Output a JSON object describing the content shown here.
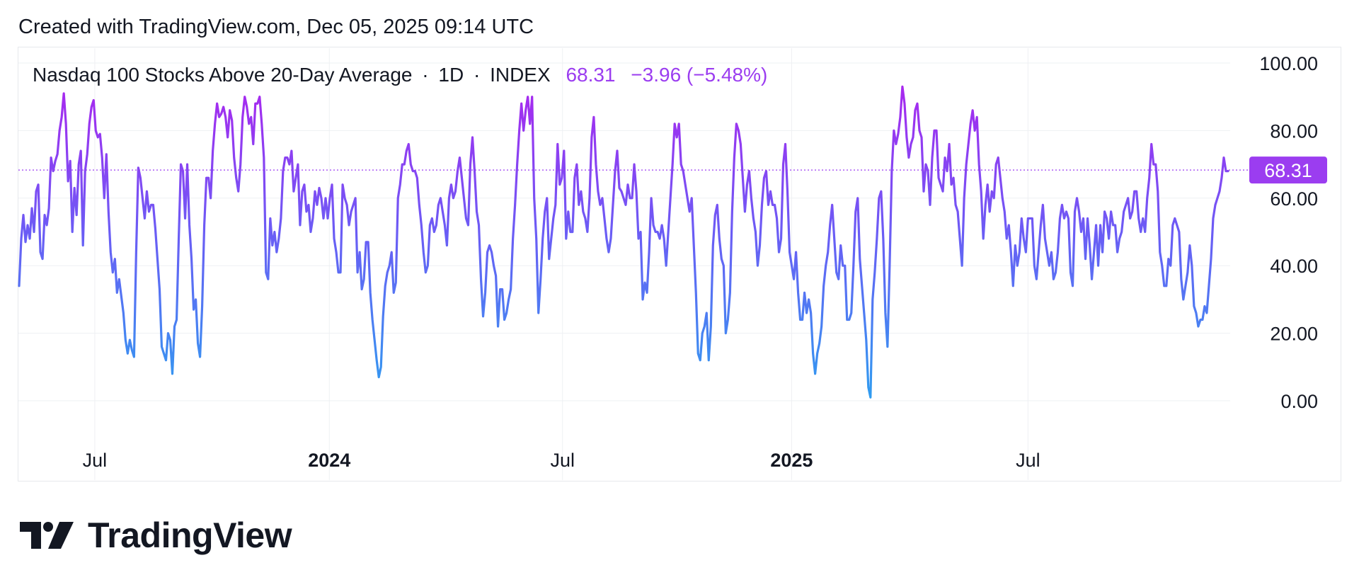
{
  "caption": "Created with TradingView.com, Dec 05, 2025 09:14 UTC",
  "legend": {
    "symbol": "Nasdaq 100 Stocks Above 20-Day Average",
    "interval": "1D",
    "exchange": "INDEX",
    "separator": "·",
    "last_value": "68.31",
    "change": "−3.96 (−5.48%)"
  },
  "brand": {
    "name": "TradingView"
  },
  "colors": {
    "line_low": "#2f9df0",
    "line_mid": "#6b5cf5",
    "line_high": "#b220ee",
    "price_label_bg": "#9b3df0",
    "grid": "#eef0f3"
  },
  "chart_data": {
    "type": "line",
    "title": "Nasdaq 100 Stocks Above 20-Day Average · 1D · INDEX",
    "ylim": [
      -10,
      102
    ],
    "y_ticks": [
      "100.00",
      "80.00",
      "60.00",
      "40.00",
      "20.00",
      "0.00"
    ],
    "y_tick_values": [
      100,
      80,
      60,
      40,
      20,
      0
    ],
    "x_ticks": [
      {
        "label": "Jul",
        "t": 0.0626,
        "bold": false
      },
      {
        "label": "2024",
        "t": 0.2566,
        "bold": true
      },
      {
        "label": "Jul",
        "t": 0.4495,
        "bold": false
      },
      {
        "label": "2025",
        "t": 0.639,
        "bold": true
      },
      {
        "label": "Jul",
        "t": 0.8345,
        "bold": false
      }
    ],
    "last_value": 68.31,
    "last_value_label": "68.31",
    "series": [
      {
        "name": "Nasdaq 100 Stocks Above 20-Day Average",
        "values": [
          34,
          48,
          55,
          47,
          52,
          48,
          57,
          50,
          62,
          64,
          44,
          42,
          55,
          52,
          57,
          72,
          68,
          71,
          73,
          80,
          84,
          91,
          82,
          65,
          71,
          50,
          63,
          55,
          70,
          74,
          46,
          68,
          73,
          82,
          87,
          89,
          80,
          78,
          79,
          72,
          60,
          73,
          56,
          44,
          38,
          42,
          32,
          36,
          31,
          26,
          18,
          14,
          18,
          15,
          13,
          44,
          69,
          66,
          60,
          54,
          62,
          56,
          58,
          58,
          51,
          42,
          33,
          16,
          14,
          12,
          20,
          18,
          8,
          22,
          24,
          48,
          70,
          68,
          54,
          70,
          52,
          42,
          27,
          30,
          17,
          13,
          28,
          52,
          66,
          66,
          60,
          74,
          82,
          88,
          84,
          85,
          87,
          84,
          78,
          86,
          83,
          72,
          66,
          62,
          70,
          84,
          90,
          87,
          82,
          84,
          76,
          88,
          88,
          90,
          82,
          72,
          38,
          36,
          54,
          46,
          50,
          44,
          48,
          54,
          68,
          72,
          72,
          70,
          74,
          62,
          66,
          70,
          52,
          62,
          64,
          56,
          58,
          50,
          54,
          62,
          58,
          63,
          60,
          54,
          60,
          54,
          60,
          64,
          48,
          44,
          38,
          38,
          64,
          60,
          58,
          52,
          56,
          58,
          60,
          38,
          44,
          33,
          36,
          47,
          47,
          32,
          24,
          18,
          12,
          7,
          10,
          25,
          34,
          38,
          40,
          44,
          32,
          35,
          60,
          64,
          70,
          70,
          74,
          76,
          70,
          68,
          68,
          66,
          58,
          52,
          44,
          38,
          40,
          52,
          54,
          50,
          52,
          58,
          60,
          56,
          52,
          46,
          60,
          64,
          60,
          62,
          68,
          72,
          66,
          60,
          54,
          52,
          70,
          78,
          68,
          56,
          52,
          36,
          25,
          32,
          44,
          46,
          44,
          40,
          37,
          22,
          33,
          33,
          24,
          26,
          30,
          33,
          48,
          58,
          70,
          80,
          88,
          80,
          86,
          90,
          82,
          90,
          60,
          48,
          26,
          36,
          48,
          56,
          60,
          42,
          48,
          54,
          58,
          76,
          64,
          66,
          74,
          48,
          56,
          50,
          50,
          66,
          70,
          58,
          62,
          56,
          54,
          50,
          60,
          78,
          84,
          70,
          62,
          58,
          60,
          54,
          48,
          44,
          48,
          58,
          68,
          74,
          63,
          62,
          60,
          58,
          64,
          60,
          60,
          70,
          62,
          48,
          50,
          30,
          35,
          32,
          44,
          60,
          52,
          50,
          50,
          48,
          52,
          48,
          40,
          50,
          60,
          70,
          82,
          78,
          82,
          70,
          68,
          64,
          60,
          56,
          60,
          46,
          32,
          14,
          12,
          20,
          22,
          26,
          12,
          22,
          46,
          55,
          58,
          48,
          42,
          40,
          20,
          24,
          32,
          56,
          72,
          82,
          80,
          76,
          66,
          56,
          64,
          68,
          60,
          54,
          50,
          40,
          46,
          58,
          66,
          68,
          58,
          62,
          58,
          58,
          54,
          44,
          48,
          70,
          76,
          62,
          44,
          40,
          36,
          44,
          32,
          24,
          24,
          32,
          26,
          30,
          26,
          14,
          8,
          14,
          17,
          22,
          34,
          40,
          44,
          52,
          58,
          48,
          38,
          36,
          46,
          40,
          40,
          24,
          24,
          26,
          40,
          56,
          60,
          42,
          34,
          26,
          18,
          4,
          1,
          30,
          38,
          48,
          60,
          62,
          48,
          26,
          16,
          40,
          68,
          80,
          76,
          79,
          84,
          93,
          88,
          78,
          72,
          76,
          78,
          86,
          88,
          80,
          78,
          62,
          70,
          68,
          58,
          72,
          80,
          80,
          66,
          64,
          62,
          72,
          68,
          76,
          64,
          66,
          58,
          56,
          48,
          40,
          60,
          70,
          76,
          82,
          86,
          80,
          84,
          70,
          62,
          48,
          58,
          64,
          56,
          62,
          60,
          70,
          72,
          66,
          60,
          56,
          48,
          52,
          44,
          34,
          46,
          40,
          44,
          54,
          48,
          44,
          54,
          54,
          54,
          40,
          36,
          44,
          52,
          58,
          48,
          44,
          40,
          44,
          36,
          38,
          44,
          54,
          58,
          54,
          56,
          54,
          38,
          34,
          56,
          60,
          56,
          50,
          54,
          42,
          54,
          46,
          36,
          44,
          52,
          40,
          52,
          44,
          56,
          54,
          48,
          56,
          52,
          52,
          44,
          48,
          50,
          56,
          58,
          60,
          54,
          56,
          62,
          62,
          54,
          50,
          54,
          50,
          60,
          66,
          76,
          70,
          70,
          62,
          44,
          40,
          34,
          34,
          42,
          40,
          52,
          54,
          52,
          50,
          36,
          30,
          34,
          38,
          46,
          40,
          28,
          26,
          22,
          24,
          24,
          28,
          26,
          34,
          42,
          54,
          58,
          60,
          62,
          66,
          72,
          68,
          68
        ]
      }
    ]
  }
}
